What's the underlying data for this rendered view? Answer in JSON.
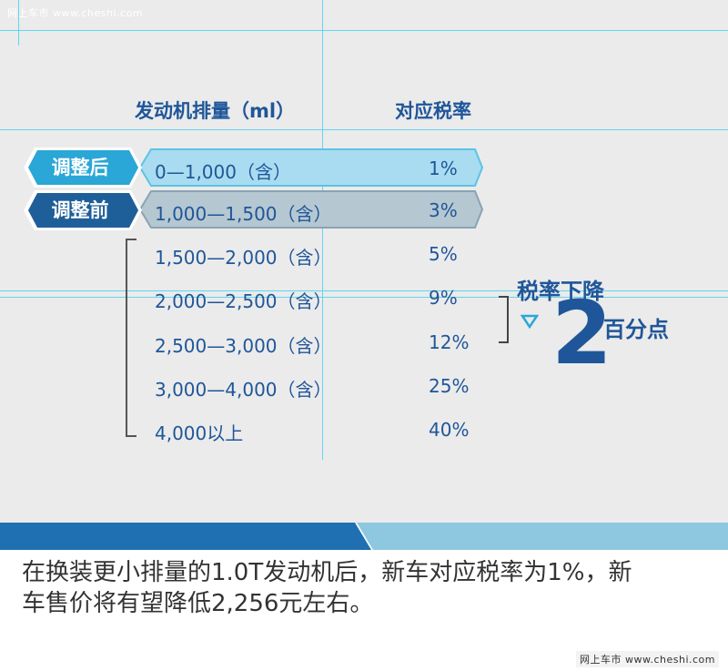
{
  "watermark": "网上车市 www.cheshi.com",
  "table": {
    "header_displacement": "发动机排量（ml）",
    "header_rate": "对应税率",
    "rows": [
      {
        "range": "0—1,000（含）",
        "rate": "1%"
      },
      {
        "range": "1,000—1,500（含）",
        "rate": "3%"
      },
      {
        "range": "1,500—2,000（含）",
        "rate": "5%"
      },
      {
        "range": "2,000—2,500（含）",
        "rate": "9%"
      },
      {
        "range": "2,500—3,000（含）",
        "rate": "12%"
      },
      {
        "range": "3,000—4,000（含）",
        "rate": "25%"
      },
      {
        "range": "4,000以上",
        "rate": "40%"
      }
    ]
  },
  "tags": {
    "after": "调整后",
    "before": "调整前"
  },
  "callout": {
    "title": "税率下降",
    "number": "2",
    "unit": "百分点",
    "icon": "triangle-down-icon"
  },
  "caption": {
    "line1": "在换装更小排量的1.0T发动机后，新车对应税率为1%，新",
    "line2": "车售价将有望降低2,256元左右。"
  },
  "colors": {
    "panel_bg": "#ebebeb",
    "dark_blue": "#1f5699",
    "light_blue": "#2aa7d6",
    "row_highlight_light": "#a9dcf0",
    "row_highlight_grey": "#b5c7d1",
    "band_dark": "#1f70b3",
    "band_light": "#8ec7e0"
  }
}
